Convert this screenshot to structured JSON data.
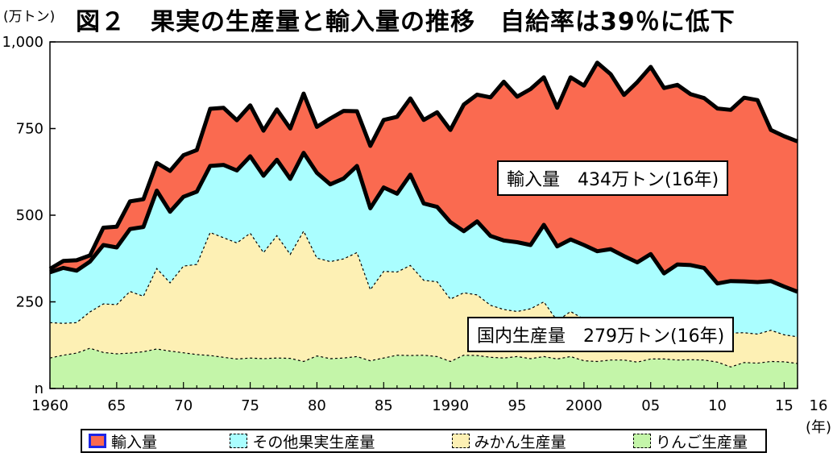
{
  "header": {
    "unit": "(万トン)",
    "title": "図２　果実の生産量と輸入量の推移　自給率は39％に低下"
  },
  "callouts": {
    "imports": "輸入量　434万トン(16年)",
    "domestic": "国内生産量　279万トン(16年)"
  },
  "colors": {
    "imports": "#fa6a50",
    "other_fruit": "#aafeff",
    "mikan": "#fdf0b4",
    "apple": "#c4f5a9",
    "imports_legend_border": "#1d25e6"
  },
  "chart_data": {
    "type": "area",
    "stacked": true,
    "title": "図２　果実の生産量と輸入量の推移　自給率は39％に低下",
    "ylabel": "(万トン)",
    "xlabel": "(年)",
    "xlim": [
      1960,
      2016
    ],
    "ylim": [
      0,
      1000
    ],
    "y_ticks": [
      0,
      250,
      500,
      750,
      1000
    ],
    "y_tick_labels": [
      "n",
      "250",
      "500",
      "750",
      "1,000"
    ],
    "x_ticks": [
      1960,
      1965,
      1970,
      1975,
      1980,
      1985,
      1990,
      1995,
      2000,
      2005,
      2010,
      2015,
      2016
    ],
    "x_tick_labels": [
      "1960",
      "65",
      "70",
      "75",
      "80",
      "85",
      "1990",
      "95",
      "2000",
      "05",
      "10",
      "15",
      "16"
    ],
    "x": [
      1960,
      1961,
      1962,
      1963,
      1964,
      1965,
      1966,
      1967,
      1968,
      1969,
      1970,
      1971,
      1972,
      1973,
      1974,
      1975,
      1976,
      1977,
      1978,
      1979,
      1980,
      1981,
      1982,
      1983,
      1984,
      1985,
      1986,
      1987,
      1988,
      1989,
      1990,
      1991,
      1992,
      1993,
      1994,
      1995,
      1996,
      1997,
      1998,
      1999,
      2000,
      2001,
      2002,
      2003,
      2004,
      2005,
      2006,
      2007,
      2008,
      2009,
      2010,
      2011,
      2012,
      2013,
      2014,
      2015,
      2016
    ],
    "series": [
      {
        "name": "りんご生産量",
        "values": [
          88,
          96,
          102,
          116,
          104,
          100,
          102,
          106,
          114,
          108,
          103,
          98,
          95,
          90,
          85,
          88,
          86,
          88,
          87,
          78,
          94,
          86,
          88,
          92,
          80,
          88,
          96,
          95,
          96,
          92,
          78,
          96,
          95,
          90,
          88,
          92,
          86,
          92,
          85,
          92,
          80,
          78,
          82,
          82,
          76,
          85,
          85,
          82,
          83,
          82,
          76,
          62,
          75,
          73,
          78,
          77,
          72
        ]
      },
      {
        "name": "みかん生産量",
        "values": [
          102,
          92,
          88,
          105,
          140,
          142,
          178,
          160,
          232,
          197,
          250,
          260,
          355,
          345,
          335,
          360,
          306,
          353,
          300,
          376,
          282,
          280,
          286,
          300,
          205,
          250,
          240,
          260,
          216,
          216,
          180,
          180,
          175,
          150,
          140,
          130,
          144,
          158,
          110,
          130,
          120,
          128,
          118,
          112,
          108,
          110,
          108,
          110,
          100,
          96,
          90,
          98,
          86,
          84,
          90,
          78,
          77
        ]
      },
      {
        "name": "その他果実生産量",
        "values": [
          145,
          160,
          150,
          145,
          170,
          165,
          180,
          200,
          225,
          205,
          200,
          210,
          192,
          210,
          209,
          222,
          222,
          219,
          218,
          226,
          246,
          223,
          232,
          250,
          235,
          242,
          226,
          262,
          222,
          216,
          222,
          178,
          212,
          200,
          199,
          200,
          184,
          222,
          215,
          208,
          214,
          190,
          202,
          188,
          180,
          193,
          139,
          166,
          173,
          170,
          137,
          150,
          148,
          150,
          142,
          139,
          130
        ]
      },
      {
        "name": "輸入量",
        "values": [
          10,
          20,
          30,
          18,
          50,
          60,
          80,
          80,
          80,
          118,
          120,
          120,
          165,
          165,
          145,
          147,
          130,
          145,
          145,
          171,
          133,
          190,
          195,
          158,
          180,
          195,
          222,
          220,
          241,
          273,
          266,
          365,
          366,
          400,
          458,
          420,
          450,
          426,
          400,
          468,
          460,
          544,
          505,
          465,
          520,
          540,
          535,
          518,
          493,
          490,
          505,
          494,
          530,
          525,
          436,
          434,
          434
        ]
      }
    ],
    "legend": [
      "輸入量",
      "その他果実生産量",
      "みかん生産量",
      "りんご生産量"
    ],
    "legend_position": "bottom"
  }
}
